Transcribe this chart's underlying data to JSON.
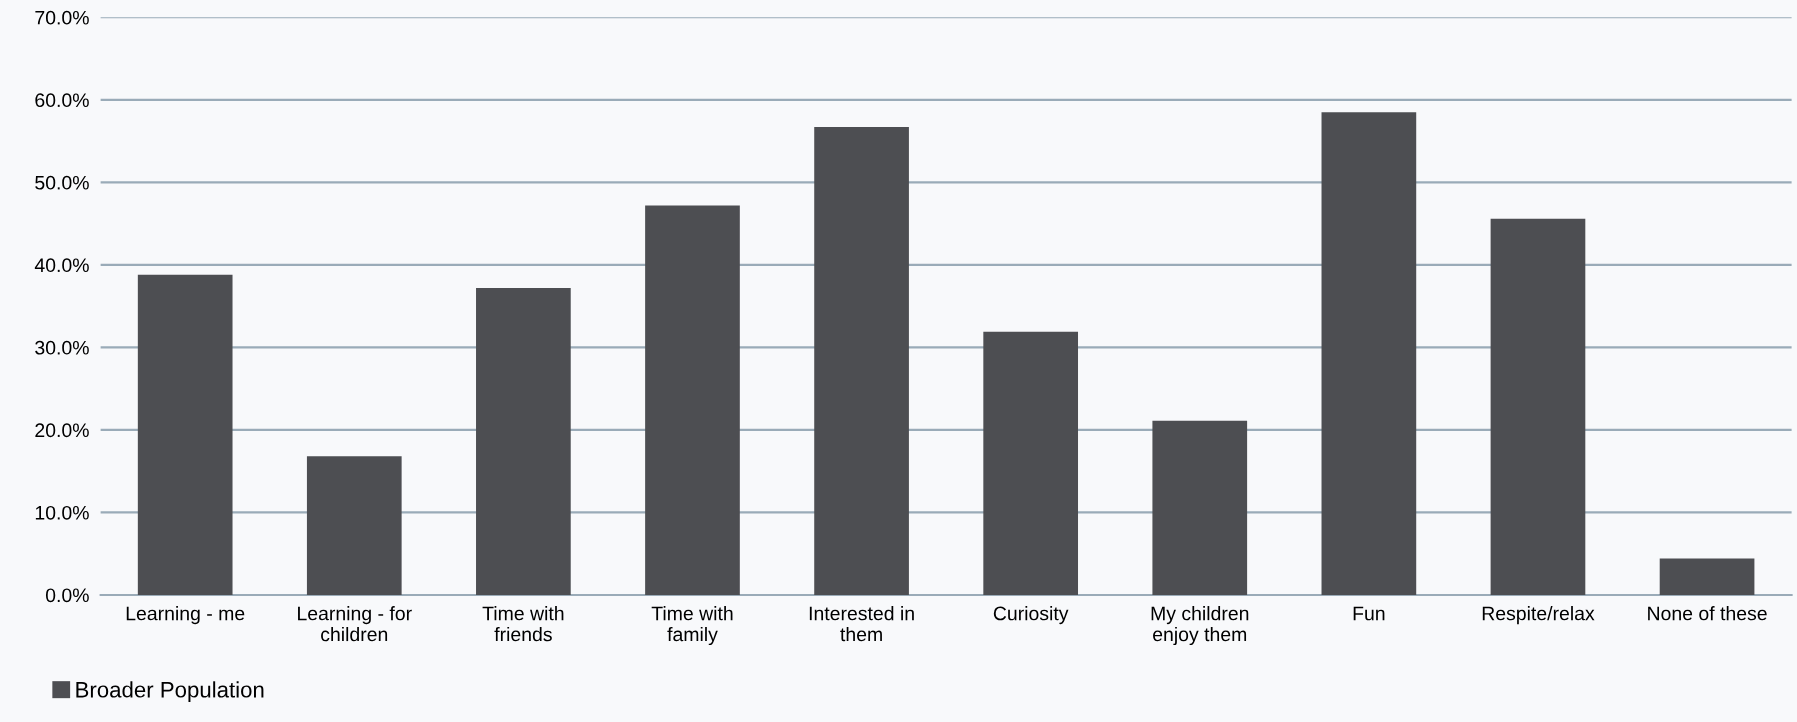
{
  "chart_data": {
    "type": "bar",
    "categories": [
      "Learning - me",
      "Learning - for\nchildren",
      "Time with\nfriends",
      "Time with\nfamily",
      "Interested in\nthem",
      "Curiosity",
      "My children\nenjoy them",
      "Fun",
      "Respite/relax",
      "None of these"
    ],
    "series": [
      {
        "name": "Broader Population",
        "color": "#4d4e52",
        "values": [
          38.8,
          16.8,
          37.2,
          47.2,
          56.7,
          31.9,
          21.1,
          58.5,
          45.6,
          4.4
        ]
      }
    ],
    "ylim": [
      0,
      70
    ],
    "yticks": [
      {
        "value": 0,
        "label": "0.0%"
      },
      {
        "value": 10,
        "label": "10.0%"
      },
      {
        "value": 20,
        "label": "20.0%"
      },
      {
        "value": 30,
        "label": "30.0%"
      },
      {
        "value": 40,
        "label": "40.0%"
      },
      {
        "value": 50,
        "label": "50.0%"
      },
      {
        "value": 60,
        "label": "60.0%"
      },
      {
        "value": 70,
        "label": "70.0%"
      }
    ],
    "grid": "y",
    "legend": "bottom left"
  }
}
